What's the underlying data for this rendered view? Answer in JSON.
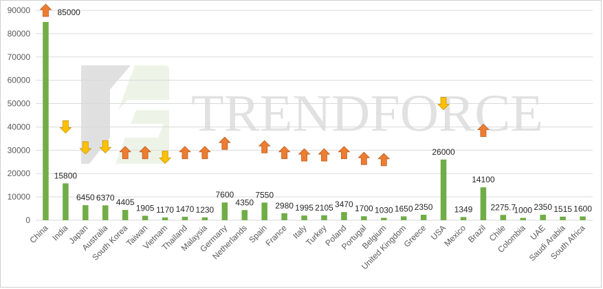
{
  "watermark": {
    "logo_text": "TRENDFORCE"
  },
  "colors": {
    "bar": "#70ad47",
    "up_arrow": "#ed7d31",
    "down_arrow": "#ffc000",
    "grid": "#d9d9d9",
    "axis_text": "#595959"
  },
  "chart_data": {
    "type": "bar",
    "title": "",
    "xlabel": "",
    "ylabel": "",
    "ylim": [
      0,
      90000
    ],
    "yticks": [
      0,
      10000,
      20000,
      30000,
      40000,
      50000,
      60000,
      70000,
      80000,
      90000
    ],
    "grid": true,
    "categories": [
      "China",
      "India",
      "Japan",
      "Australia",
      "South Korea",
      "Taiwan",
      "Vietnam",
      "Thailand",
      "Malaysia",
      "Germany",
      "Netherlands",
      "Spain",
      "France",
      "Italy",
      "Turkey",
      "Poland",
      "Portugal",
      "Belgium",
      "United Kingdom",
      "Greece",
      "USA",
      "Mexico",
      "Brazil",
      "Chile",
      "Colombia",
      "UAE",
      "Saudi Arabia",
      "South Africa"
    ],
    "values": [
      85000,
      15800,
      6450,
      6370,
      4405,
      1905,
      1170,
      1470,
      1230,
      7600,
      4350,
      7550,
      2980,
      1995,
      2105,
      3470,
      1700,
      1030,
      1650,
      2350,
      26000,
      1349,
      14100,
      2275.7,
      1000,
      2350,
      1515,
      1600
    ],
    "data_labels": [
      "85000",
      "15800",
      "6450",
      "6370",
      "4405",
      "1905",
      "1170",
      "1470",
      "1230",
      "7600",
      "4350",
      "7550",
      "2980",
      "1995",
      "2105",
      "3470",
      "1700",
      "1030",
      "1650",
      "2350",
      "26000",
      "1349",
      "14100",
      "2275.7",
      "1000",
      "2350",
      "1515",
      "1600"
    ],
    "trend_indicators": [
      {
        "category": "China",
        "direction": "up",
        "level": 90000
      },
      {
        "category": "India",
        "direction": "down",
        "level": 40000
      },
      {
        "category": "Japan",
        "direction": "down",
        "level": 31000
      },
      {
        "category": "Australia",
        "direction": "down",
        "level": 31500
      },
      {
        "category": "South Korea",
        "direction": "up",
        "level": 29000
      },
      {
        "category": "Taiwan",
        "direction": "up",
        "level": 29000
      },
      {
        "category": "Vietnam",
        "direction": "down",
        "level": 27000
      },
      {
        "category": "Thailand",
        "direction": "up",
        "level": 29000
      },
      {
        "category": "Malaysia",
        "direction": "up",
        "level": 29000
      },
      {
        "category": "Germany",
        "direction": "up",
        "level": 33000
      },
      {
        "category": "Spain",
        "direction": "up",
        "level": 31500
      },
      {
        "category": "France",
        "direction": "up",
        "level": 29000
      },
      {
        "category": "Italy",
        "direction": "up",
        "level": 28000
      },
      {
        "category": "Turkey",
        "direction": "up",
        "level": 28000
      },
      {
        "category": "Poland",
        "direction": "up",
        "level": 29000
      },
      {
        "category": "Portugal",
        "direction": "up",
        "level": 26500
      },
      {
        "category": "Belgium",
        "direction": "up",
        "level": 26000
      },
      {
        "category": "USA",
        "direction": "down",
        "level": 50000
      },
      {
        "category": "Brazil",
        "direction": "up",
        "level": 38500
      }
    ]
  }
}
